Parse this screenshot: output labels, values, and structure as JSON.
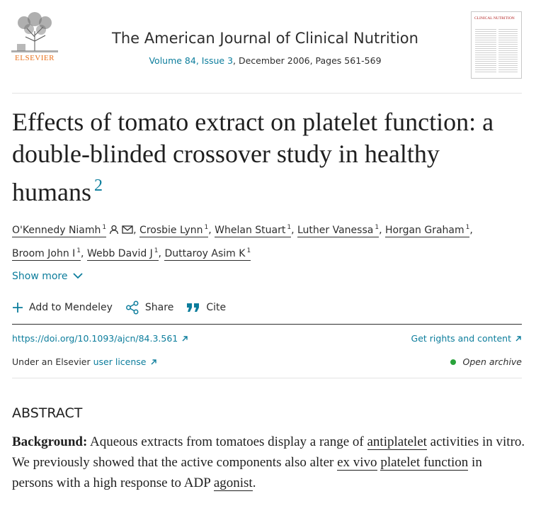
{
  "header": {
    "publisher": "ELSEVIER",
    "journal_title": "The American Journal of Clinical Nutrition",
    "volume_link": "Volume 84, Issue 3",
    "issue_details": ", December 2006, Pages 561-569",
    "cover_title": "CLINICAL NUTRITION"
  },
  "article": {
    "title": "Effects of tomato extract on platelet function: a double-blinded crossover study in healthy humans",
    "title_footnote": "2"
  },
  "authors": [
    {
      "name": "O'Kennedy Niamh",
      "sup": "1"
    },
    {
      "name": "Crosbie Lynn",
      "sup": "1"
    },
    {
      "name": "Whelan Stuart",
      "sup": "1"
    },
    {
      "name": "Luther Vanessa",
      "sup": "1"
    },
    {
      "name": "Horgan Graham",
      "sup": "1"
    },
    {
      "name": "Broom John I",
      "sup": "1"
    },
    {
      "name": "Webb David J",
      "sup": "1"
    },
    {
      "name": "Duttaroy Asim K",
      "sup": "1"
    }
  ],
  "show_more_label": "Show more",
  "actions": {
    "mendeley": "Add to Mendeley",
    "share": "Share",
    "cite": "Cite"
  },
  "doi": "https://doi.org/10.1093/ajcn/84.3.561",
  "rights_label": "Get rights and content",
  "license": {
    "prefix": "Under an Elsevier ",
    "link": "user license"
  },
  "open_archive_label": "Open archive",
  "abstract": {
    "heading": "ABSTRACT",
    "lead": "Background:",
    "t1": " Aqueous extracts from tomatoes display a range of ",
    "l1": "antiplatelet",
    "t2": " activities in vitro. We previously showed that the active components also alter ",
    "l2": "ex vivo",
    "t3": " ",
    "l3": "platelet function",
    "t4": " in persons with a high response to ADP ",
    "l4": "agonist",
    "t5": "."
  },
  "colors": {
    "link": "#0c7d9c",
    "publisher_orange": "#e9711c",
    "open_archive_dot": "#29a33b"
  }
}
